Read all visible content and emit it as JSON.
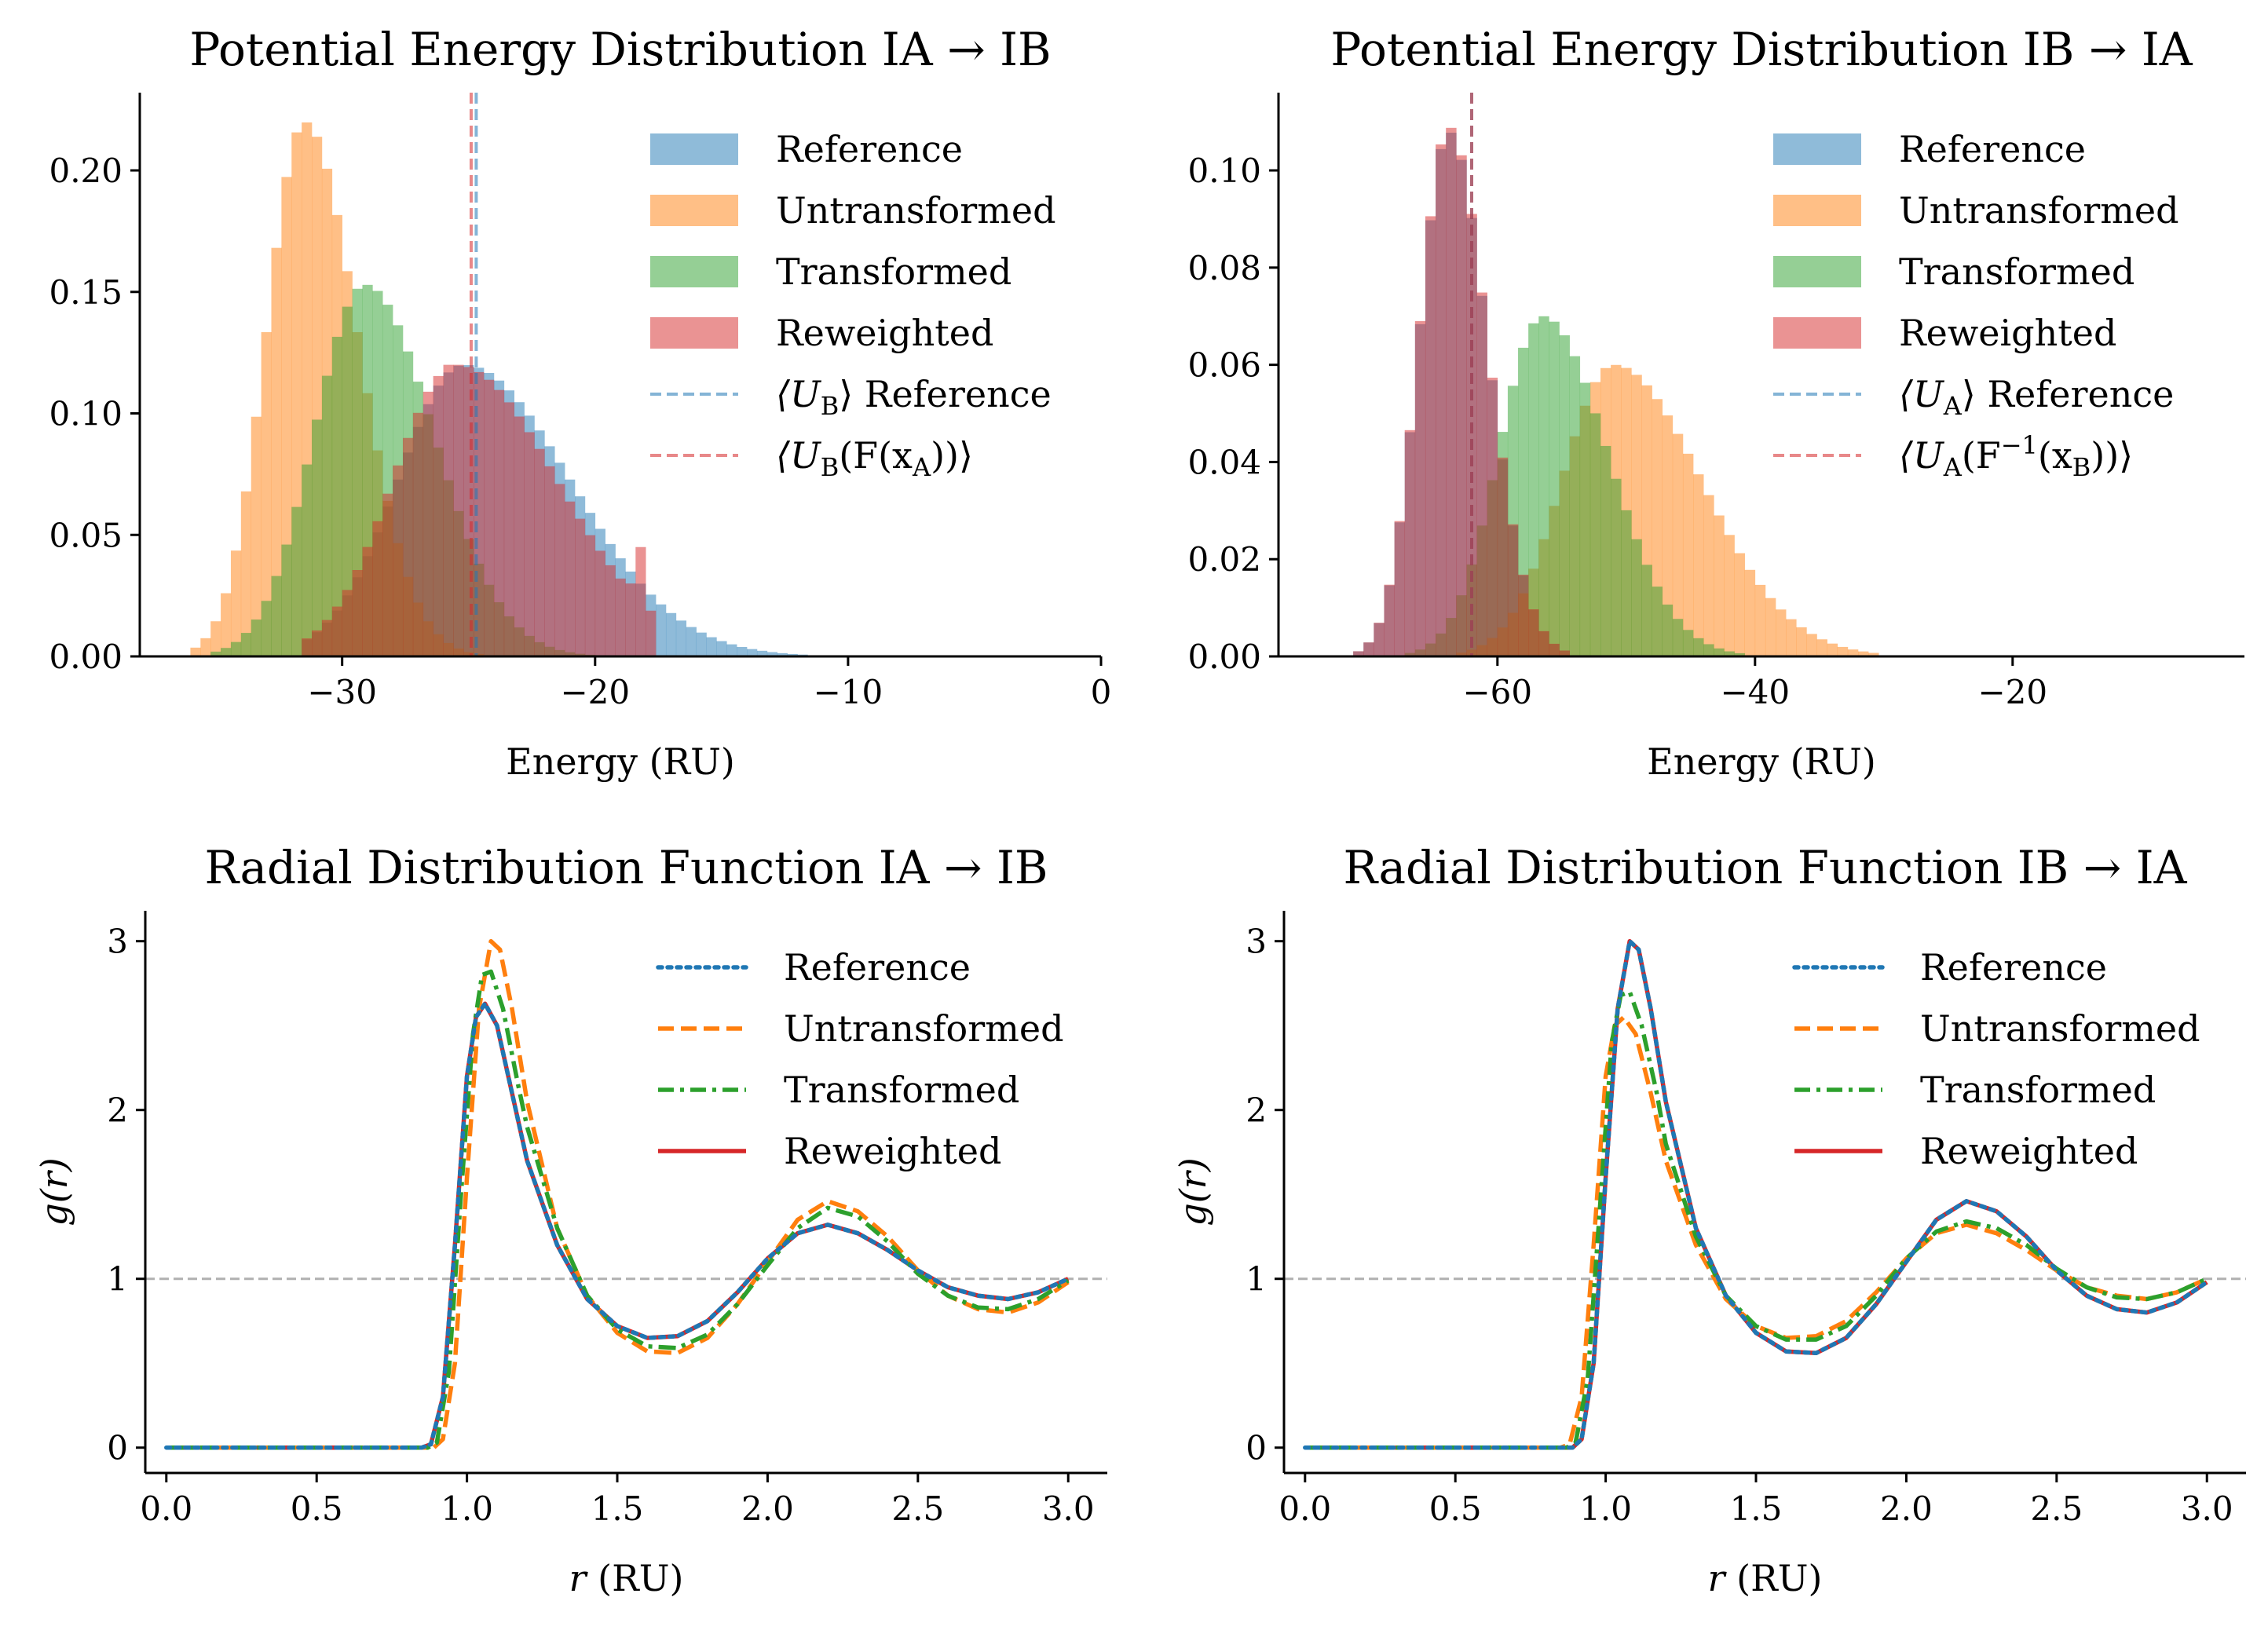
{
  "colors": {
    "blue": "#1f77b4",
    "orange": "#ff7f0e",
    "green": "#2ca02c",
    "red": "#d62728",
    "gray": "#b0b0b0"
  },
  "chart_data": [
    {
      "id": "p1",
      "type": "histogram",
      "title": "Potential Energy Distribution IA → IB",
      "xlabel": "Energy (RU)",
      "ylabel": "",
      "xlim": [
        -38,
        0
      ],
      "ylim": [
        0,
        0.232
      ],
      "xticks": [
        "−30",
        "−20",
        "−10",
        "0"
      ],
      "xtick_values": [
        -30,
        -20,
        -10,
        0
      ],
      "yticks": [
        "0.00",
        "0.05",
        "0.10",
        "0.15",
        "0.20"
      ],
      "ytick_values": [
        0,
        0.05,
        0.1,
        0.15,
        0.2
      ],
      "bin_start": -36,
      "bin_width": 0.4,
      "legend": "upper right",
      "series": [
        {
          "name": "Reference",
          "color": "blue",
          "dist": {
            "type": "skew",
            "mu": -25.2,
            "sl": 2.6,
            "sr": 4.2,
            "peak": 0.12,
            "lo": -31.5,
            "hi": -11
          }
        },
        {
          "name": "Untransformed",
          "color": "orange",
          "dist": {
            "type": "skew",
            "mu": -31.5,
            "sl": 1.5,
            "sr": 2.1,
            "peak": 0.22,
            "lo": -36,
            "hi": -20
          }
        },
        {
          "name": "Transformed",
          "color": "green",
          "dist": {
            "type": "skew",
            "mu": -29.1,
            "sl": 2.0,
            "sr": 2.7,
            "peak": 0.153,
            "lo": -35,
            "hi": -18
          }
        },
        {
          "name": "Reweighted",
          "color": "red",
          "dist": {
            "type": "skew",
            "mu": -25.5,
            "sl": 2.5,
            "sr": 4.0,
            "peak": 0.12,
            "lo": -31.5,
            "hi": -17.5
          },
          "spikes": [
            [
              -25.6,
              0.12
            ],
            [
              -18.2,
              0.045
            ],
            [
              -18.6,
              0.03
            ]
          ]
        }
      ],
      "vlines": [
        {
          "name": "⟨U_B⟩ Reference",
          "label_main": "⟨U",
          "label_sub": "B",
          "label_rest": "⟩ Reference",
          "x": -24.7,
          "color": "blue"
        },
        {
          "name": "⟨U_B(F(x_A))⟩",
          "label_main": "⟨U",
          "label_sub": "B",
          "label_rest": "(F(x",
          "label_sub2": "A",
          "label_end": "))⟩",
          "x": -24.9,
          "color": "red"
        }
      ]
    },
    {
      "id": "p2",
      "type": "histogram",
      "title": "Potential Energy Distribution IB → IA",
      "xlabel": "Energy (RU)",
      "ylabel": "",
      "xlim": [
        -77,
        -2
      ],
      "ylim": [
        0,
        0.116
      ],
      "xticks": [
        "−60",
        "−40",
        "−20"
      ],
      "xtick_values": [
        -60,
        -40,
        -20
      ],
      "yticks": [
        "0.00",
        "0.02",
        "0.04",
        "0.06",
        "0.08",
        "0.10"
      ],
      "ytick_values": [
        0,
        0.02,
        0.04,
        0.06,
        0.08,
        0.1
      ],
      "bin_start": -72,
      "bin_width": 0.8,
      "legend": "upper right",
      "series": [
        {
          "name": "Reference",
          "color": "blue",
          "dist": {
            "type": "skew",
            "mu": -63.8,
            "sl": 2.3,
            "sr": 3.0,
            "peak": 0.108,
            "lo": -72,
            "hi": -52
          }
        },
        {
          "name": "Untransformed",
          "color": "orange",
          "dist": {
            "type": "skew",
            "mu": -51.0,
            "sl": 4.0,
            "sr": 6.8,
            "peak": 0.06,
            "lo": -66,
            "hi": -20
          }
        },
        {
          "name": "Transformed",
          "color": "green",
          "dist": {
            "type": "skew",
            "mu": -56.5,
            "sl": 3.4,
            "sr": 5.0,
            "peak": 0.07,
            "lo": -68,
            "hi": -32
          }
        },
        {
          "name": "Reweighted",
          "color": "red",
          "dist": {
            "type": "skew",
            "mu": -63.8,
            "sl": 2.3,
            "sr": 3.0,
            "peak": 0.109,
            "lo": -72,
            "hi": -52
          }
        }
      ],
      "vlines": [
        {
          "name": "⟨U_A⟩ Reference",
          "label_main": "⟨U",
          "label_sub": "A",
          "label_rest": "⟩ Reference",
          "x": -62.0,
          "color": "blue"
        },
        {
          "name": "⟨U_A(F⁻¹(x_B))⟩",
          "label_main": "⟨U",
          "label_sub": "A",
          "label_rest": "(F",
          "label_sup": "−1",
          "label_rest2": "(x",
          "label_sub2": "B",
          "label_end": "))⟩",
          "x": -62.0,
          "color": "red"
        }
      ]
    },
    {
      "id": "p3",
      "type": "line",
      "title": "Radial Distribution Function IA → IB",
      "xlabel": "r (RU)",
      "ylabel": "g(r)",
      "xlim": [
        -0.07,
        3.13
      ],
      "ylim": [
        -0.15,
        3.18
      ],
      "xticks": [
        "0.0",
        "0.5",
        "1.0",
        "1.5",
        "2.0",
        "2.5",
        "3.0"
      ],
      "xtick_values": [
        0,
        0.5,
        1,
        1.5,
        2,
        2.5,
        3
      ],
      "yticks": [
        "0",
        "1",
        "2",
        "3"
      ],
      "ytick_values": [
        0,
        1,
        2,
        3
      ],
      "hline": 1,
      "legend": "upper right",
      "series": [
        {
          "name": "Reference",
          "color": "blue",
          "style": "dotted",
          "x": [
            0.0,
            0.85,
            0.88,
            0.92,
            0.96,
            1.0,
            1.03,
            1.06,
            1.1,
            1.15,
            1.2,
            1.3,
            1.4,
            1.5,
            1.6,
            1.7,
            1.8,
            1.9,
            2.0,
            2.1,
            2.2,
            2.3,
            2.4,
            2.5,
            2.6,
            2.7,
            2.8,
            2.9,
            3.0
          ],
          "y": [
            0,
            0,
            0.02,
            0.3,
            1.2,
            2.2,
            2.55,
            2.63,
            2.5,
            2.1,
            1.7,
            1.2,
            0.88,
            0.72,
            0.65,
            0.66,
            0.75,
            0.92,
            1.12,
            1.27,
            1.32,
            1.27,
            1.17,
            1.05,
            0.95,
            0.9,
            0.88,
            0.92,
            1.0
          ]
        },
        {
          "name": "Untransformed",
          "color": "orange",
          "style": "dashed",
          "x": [
            0.0,
            0.89,
            0.92,
            0.96,
            1.0,
            1.04,
            1.08,
            1.11,
            1.15,
            1.2,
            1.3,
            1.4,
            1.5,
            1.6,
            1.7,
            1.8,
            1.9,
            2.0,
            2.1,
            2.2,
            2.3,
            2.4,
            2.5,
            2.6,
            2.7,
            2.8,
            2.9,
            3.0
          ],
          "y": [
            0,
            0,
            0.05,
            0.5,
            1.6,
            2.6,
            3.0,
            2.95,
            2.6,
            2.05,
            1.3,
            0.9,
            0.68,
            0.57,
            0.56,
            0.65,
            0.85,
            1.1,
            1.35,
            1.46,
            1.4,
            1.25,
            1.05,
            0.9,
            0.82,
            0.8,
            0.86,
            0.98
          ]
        },
        {
          "name": "Transformed",
          "color": "green",
          "style": "dashdot",
          "x": [
            0.0,
            0.87,
            0.9,
            0.94,
            0.98,
            1.02,
            1.05,
            1.08,
            1.12,
            1.17,
            1.2,
            1.3,
            1.4,
            1.5,
            1.6,
            1.7,
            1.8,
            1.9,
            2.0,
            2.1,
            2.2,
            2.3,
            2.4,
            2.5,
            2.6,
            2.7,
            2.8,
            2.9,
            3.0
          ],
          "y": [
            0,
            0,
            0.03,
            0.45,
            1.5,
            2.45,
            2.8,
            2.82,
            2.6,
            2.15,
            1.9,
            1.3,
            0.9,
            0.7,
            0.6,
            0.59,
            0.67,
            0.85,
            1.08,
            1.3,
            1.42,
            1.37,
            1.22,
            1.03,
            0.9,
            0.83,
            0.82,
            0.88,
            0.99
          ]
        },
        {
          "name": "Reweighted",
          "color": "red",
          "style": "solid",
          "x": [
            0.0,
            0.85,
            0.88,
            0.92,
            0.96,
            1.0,
            1.03,
            1.06,
            1.1,
            1.15,
            1.2,
            1.3,
            1.4,
            1.5,
            1.6,
            1.7,
            1.8,
            1.9,
            2.0,
            2.1,
            2.2,
            2.3,
            2.4,
            2.5,
            2.6,
            2.7,
            2.8,
            2.9,
            3.0
          ],
          "y": [
            0,
            0,
            0.02,
            0.3,
            1.2,
            2.2,
            2.55,
            2.63,
            2.5,
            2.1,
            1.7,
            1.2,
            0.88,
            0.72,
            0.65,
            0.66,
            0.75,
            0.92,
            1.12,
            1.27,
            1.32,
            1.27,
            1.17,
            1.05,
            0.95,
            0.9,
            0.88,
            0.92,
            1.0
          ]
        }
      ]
    },
    {
      "id": "p4",
      "type": "line",
      "title": "Radial Distribution Function IB → IA",
      "xlabel": "r (RU)",
      "ylabel": "g(r)",
      "xlim": [
        -0.07,
        3.13
      ],
      "ylim": [
        -0.15,
        3.18
      ],
      "xticks": [
        "0.0",
        "0.5",
        "1.0",
        "1.5",
        "2.0",
        "2.5",
        "3.0"
      ],
      "xtick_values": [
        0,
        0.5,
        1,
        1.5,
        2,
        2.5,
        3
      ],
      "yticks": [
        "0",
        "1",
        "2",
        "3"
      ],
      "ytick_values": [
        0,
        1,
        2,
        3
      ],
      "hline": 1,
      "legend": "upper right",
      "series": [
        {
          "name": "Reference",
          "color": "blue",
          "style": "dotted",
          "x": [
            0.0,
            0.89,
            0.92,
            0.96,
            1.0,
            1.04,
            1.08,
            1.11,
            1.15,
            1.2,
            1.3,
            1.4,
            1.5,
            1.6,
            1.7,
            1.8,
            1.9,
            2.0,
            2.1,
            2.2,
            2.3,
            2.4,
            2.5,
            2.6,
            2.7,
            2.8,
            2.9,
            3.0
          ],
          "y": [
            0,
            0,
            0.05,
            0.5,
            1.6,
            2.6,
            3.0,
            2.95,
            2.6,
            2.05,
            1.3,
            0.9,
            0.68,
            0.57,
            0.56,
            0.65,
            0.85,
            1.1,
            1.35,
            1.46,
            1.4,
            1.25,
            1.05,
            0.9,
            0.82,
            0.8,
            0.86,
            0.98
          ]
        },
        {
          "name": "Untransformed",
          "color": "orange",
          "style": "dashed",
          "x": [
            0.0,
            0.85,
            0.88,
            0.92,
            0.96,
            1.0,
            1.03,
            1.06,
            1.1,
            1.15,
            1.2,
            1.3,
            1.4,
            1.5,
            1.6,
            1.7,
            1.8,
            1.9,
            2.0,
            2.1,
            2.2,
            2.3,
            2.4,
            2.5,
            2.6,
            2.7,
            2.8,
            2.9,
            3.0
          ],
          "y": [
            0,
            0,
            0.02,
            0.3,
            1.2,
            2.2,
            2.5,
            2.55,
            2.45,
            2.1,
            1.7,
            1.2,
            0.88,
            0.72,
            0.65,
            0.66,
            0.75,
            0.92,
            1.12,
            1.27,
            1.32,
            1.27,
            1.17,
            1.05,
            0.95,
            0.9,
            0.88,
            0.92,
            1.0
          ]
        },
        {
          "name": "Transformed",
          "color": "green",
          "style": "dashdot",
          "x": [
            0.0,
            0.87,
            0.9,
            0.94,
            0.98,
            1.02,
            1.05,
            1.08,
            1.12,
            1.17,
            1.2,
            1.3,
            1.4,
            1.5,
            1.6,
            1.7,
            1.8,
            1.9,
            2.0,
            2.1,
            2.2,
            2.3,
            2.4,
            2.5,
            2.6,
            2.7,
            2.8,
            2.9,
            3.0
          ],
          "y": [
            0,
            0,
            0.03,
            0.4,
            1.4,
            2.4,
            2.68,
            2.7,
            2.5,
            2.1,
            1.8,
            1.25,
            0.9,
            0.72,
            0.64,
            0.64,
            0.72,
            0.9,
            1.12,
            1.28,
            1.34,
            1.3,
            1.2,
            1.06,
            0.95,
            0.89,
            0.88,
            0.92,
            1.0
          ]
        },
        {
          "name": "Reweighted",
          "color": "red",
          "style": "solid",
          "x": [
            0.0,
            0.89,
            0.92,
            0.96,
            1.0,
            1.04,
            1.08,
            1.11,
            1.15,
            1.2,
            1.3,
            1.4,
            1.5,
            1.6,
            1.7,
            1.8,
            1.9,
            2.0,
            2.1,
            2.2,
            2.3,
            2.4,
            2.5,
            2.6,
            2.7,
            2.8,
            2.9,
            3.0
          ],
          "y": [
            0,
            0,
            0.05,
            0.5,
            1.6,
            2.6,
            3.0,
            2.95,
            2.6,
            2.05,
            1.3,
            0.9,
            0.68,
            0.57,
            0.56,
            0.65,
            0.85,
            1.1,
            1.35,
            1.46,
            1.4,
            1.25,
            1.05,
            0.9,
            0.82,
            0.8,
            0.86,
            0.98
          ]
        }
      ]
    }
  ]
}
